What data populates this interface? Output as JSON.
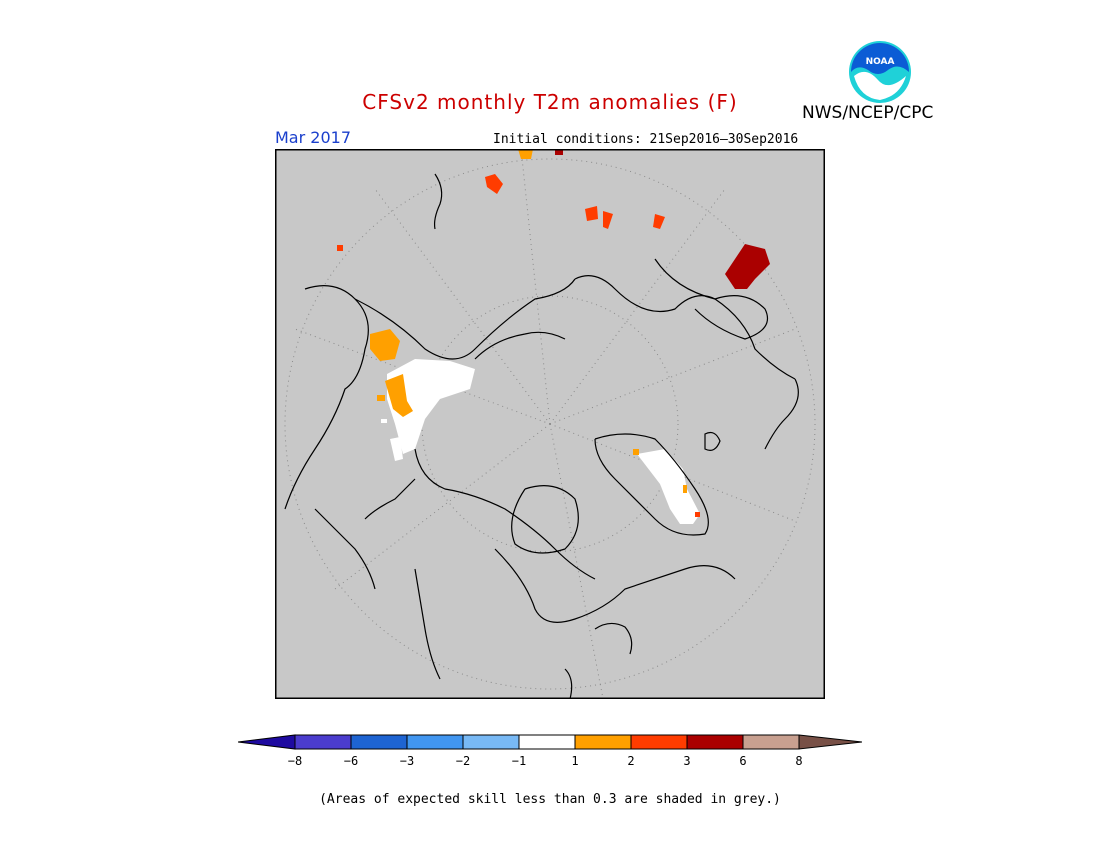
{
  "header": {
    "title": "CFSv2 monthly T2m anomalies (F)",
    "title_color": "#cc0000",
    "month": "Mar 2017",
    "month_color": "#1a3fcc",
    "initial_conditions": "Initial conditions: 21Sep2016–30Sep2016",
    "agency": "NWS/NCEP/CPC"
  },
  "logo": {
    "icon": "noaa-logo",
    "text": "NOAA",
    "colors": {
      "blue": "#0b5cd5",
      "teal": "#1fd1d8",
      "white": "#ffffff"
    }
  },
  "map": {
    "projection": "north-polar-stereographic",
    "background_color": "#c8c8c8",
    "grid": "dotted lat/lon circles",
    "coastline_color": "#000000"
  },
  "legend": {
    "tick_labels": [
      "−8",
      "−6",
      "−3",
      "−2",
      "−1",
      "1",
      "2",
      "3",
      "6",
      "8"
    ],
    "colors": [
      "#1e0aa0",
      "#4b3ccd",
      "#1e64d2",
      "#4196f0",
      "#78b9f5",
      "#ffffff",
      "#ffa000",
      "#ff3c00",
      "#aa0000",
      "#c8a090",
      "#785046"
    ]
  },
  "footnote": "(Areas of expected skill less than 0.3 are shaded in grey.)"
}
